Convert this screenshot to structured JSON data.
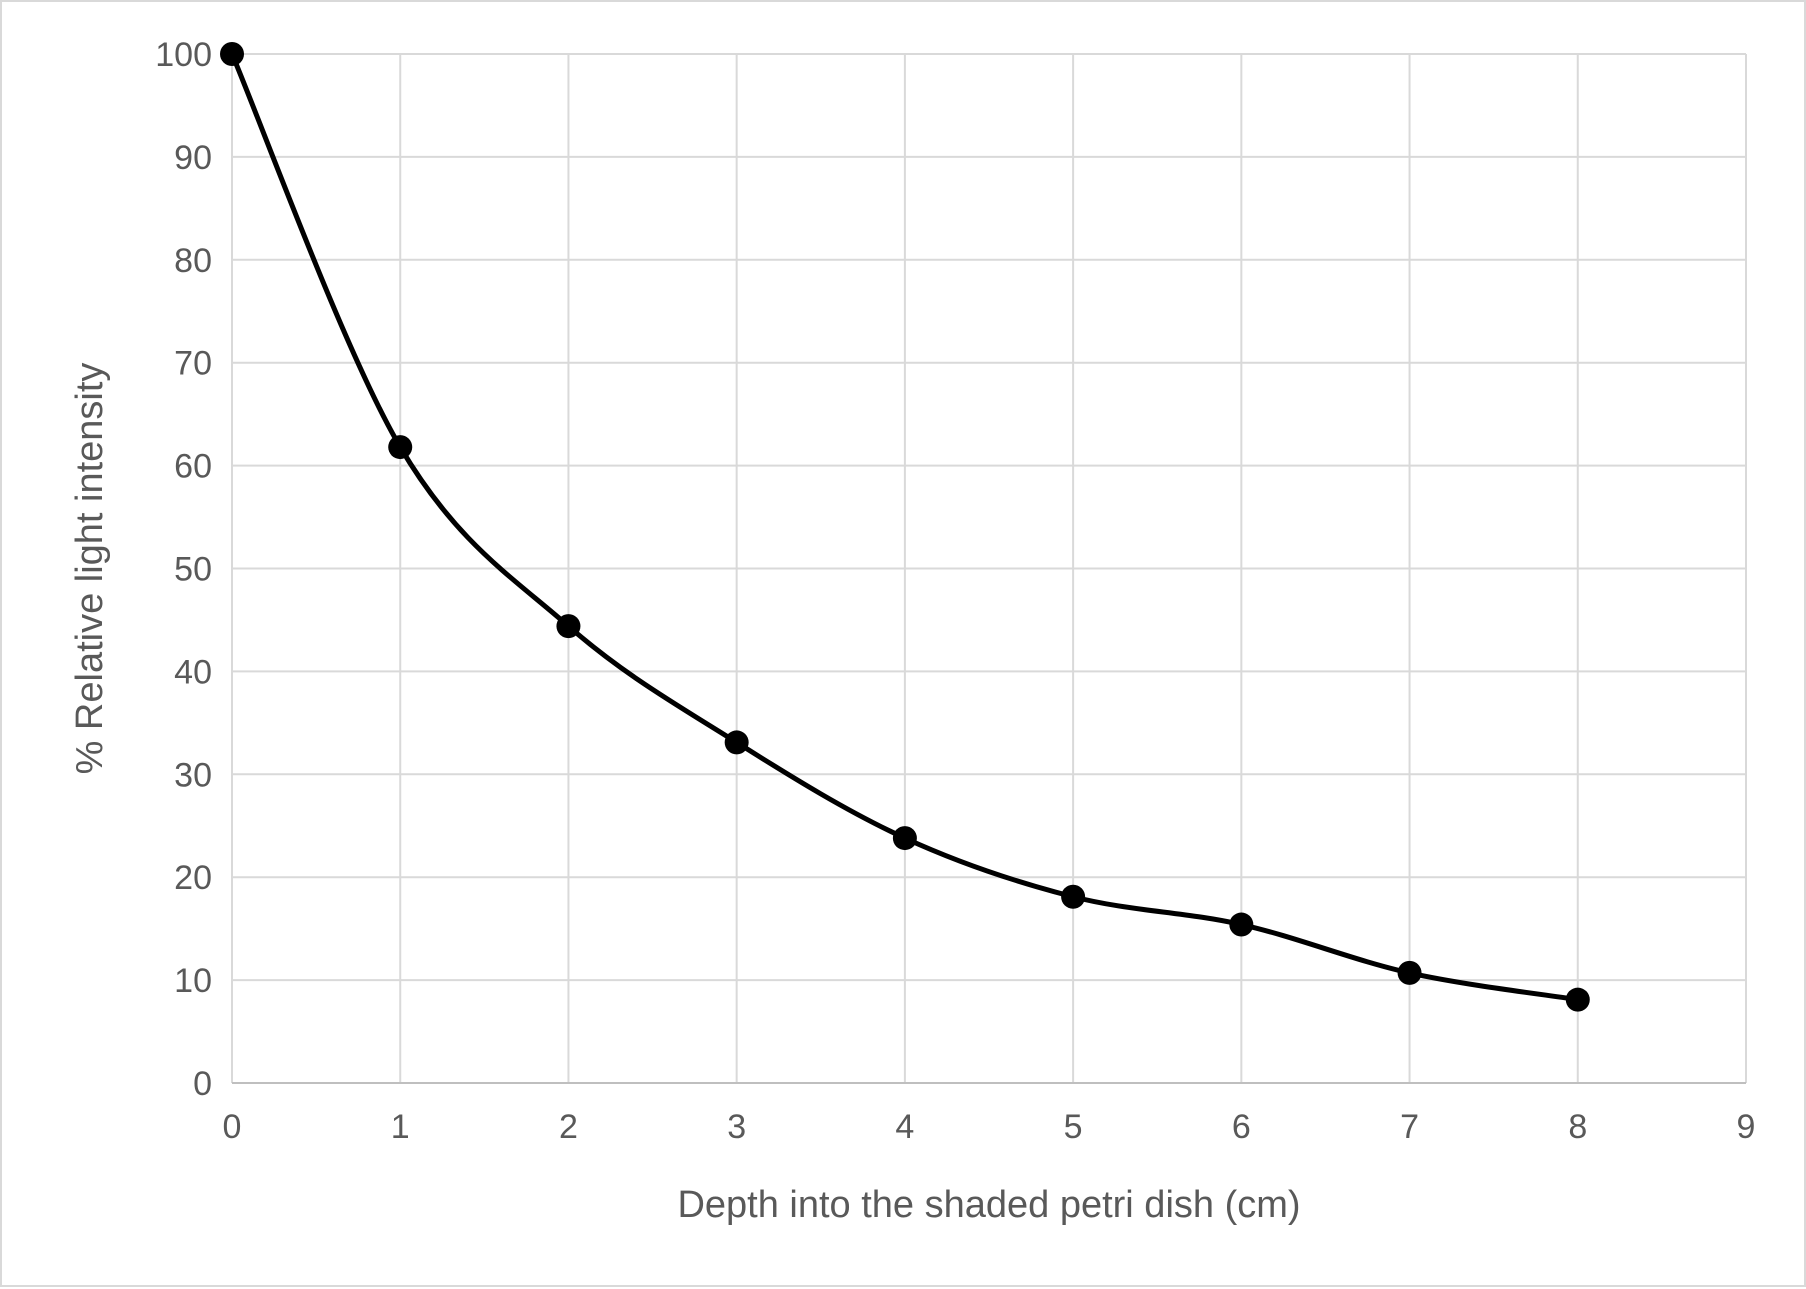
{
  "chart_data": {
    "type": "scatter",
    "title": "",
    "xlabel": "Depth into the shaded petri dish (cm)",
    "ylabel": "% Relative light intensity",
    "xlim": [
      0,
      9
    ],
    "ylim": [
      0,
      100
    ],
    "x_ticks": [
      "0",
      "1",
      "2",
      "3",
      "4",
      "5",
      "6",
      "7",
      "8",
      "9"
    ],
    "y_ticks": [
      "0",
      "10",
      "20",
      "30",
      "40",
      "50",
      "60",
      "70",
      "80",
      "90",
      "100"
    ],
    "grid": true,
    "legend": "none",
    "line_style": "smooth",
    "marker": "filled-circle",
    "series": [
      {
        "color": "#000000",
        "x": [
          0,
          1,
          2,
          3,
          4,
          5,
          6,
          7,
          8
        ],
        "y": [
          100,
          61.8,
          44.4,
          33.1,
          23.8,
          18.1,
          15.4,
          10.7,
          8.1
        ]
      }
    ]
  }
}
